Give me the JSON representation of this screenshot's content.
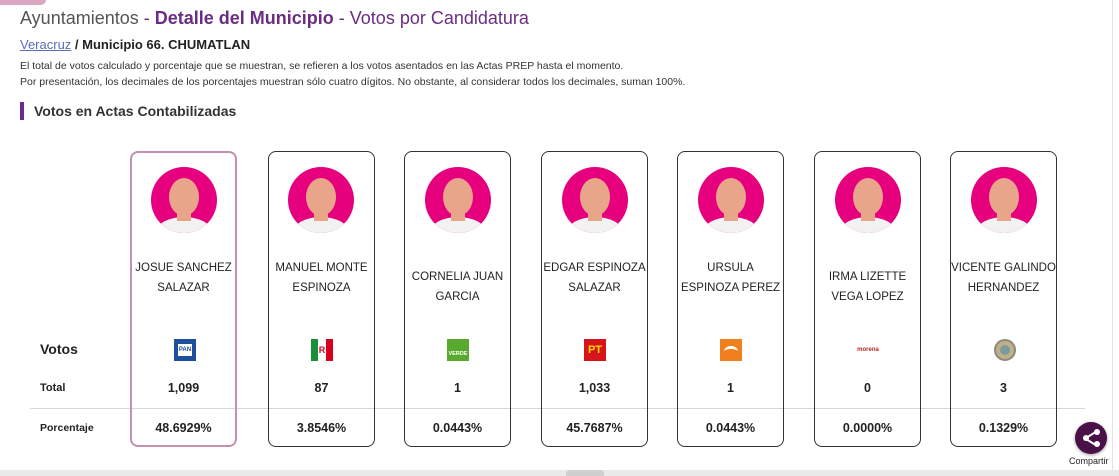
{
  "header": {
    "section": "Ayuntamientos",
    "separator": " - ",
    "title": "Detalle del Municipio",
    "subtitle": "Votos por Candidatura"
  },
  "breadcrumb": {
    "state": "Veracruz",
    "slash": " / ",
    "municipality": "Municipio 66. CHUMATLAN"
  },
  "notes": [
    "El total de votos calculado y porcentaje que se muestran, se refieren a los votos asentados en las Actas PREP hasta el momento.",
    "Por presentación, los decimales de los porcentajes muestran sólo cuatro dígitos. No obstante, al considerar todos los decimales, suman 100%."
  ],
  "section_title": "Votos en Actas Contabilizadas",
  "row_labels": {
    "votos": "Votos",
    "total": "Total",
    "porcentaje": "Porcentaje"
  },
  "candidates": [
    {
      "name": "JOSUE SANCHEZ SALAZAR",
      "party_icon": "pan-logo",
      "party_text": "PAN",
      "total": "1,099",
      "percentage": "48.6929%",
      "selected": true
    },
    {
      "name": "MANUEL MONTE ESPINOZA",
      "party_icon": "pri-logo",
      "party_text": "PRI",
      "total": "87",
      "percentage": "3.8546%"
    },
    {
      "name": "CORNELIA JUAN GARCIA",
      "party_icon": "verde-logo",
      "party_text": "VERDE",
      "total": "1",
      "percentage": "0.0443%"
    },
    {
      "name": "EDGAR ESPINOZA SALAZAR",
      "party_icon": "pt-logo",
      "party_text": "PT",
      "total": "1,033",
      "percentage": "45.7687%"
    },
    {
      "name": "URSULA ESPINOZA PEREZ",
      "party_icon": "movimiento-ciudadano-logo",
      "party_text": "",
      "total": "1",
      "percentage": "0.0443%"
    },
    {
      "name": "IRMA LIZETTE VEGA LOPEZ",
      "party_icon": "morena-logo",
      "party_text": "morena",
      "total": "0",
      "percentage": "0.0000%"
    },
    {
      "name": "VICENTE GALINDO HERNANDEZ",
      "party_icon": "independiente-logo",
      "party_text": "",
      "total": "3",
      "percentage": "0.1329%"
    }
  ],
  "share": {
    "label": "Compartir",
    "icon": "share-icon"
  },
  "colors": {
    "accent": "#6b2d83",
    "avatar": "#e6007e",
    "selected_border": "#c48fb0",
    "share_button": "#4a1048"
  }
}
